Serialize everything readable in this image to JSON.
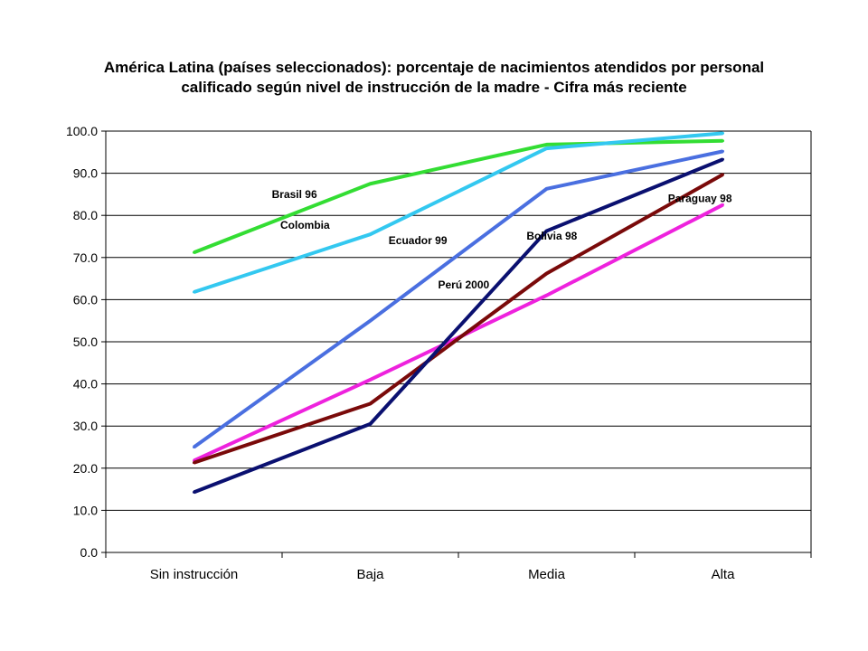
{
  "chart_data": {
    "type": "line",
    "title_lines": [
      "América Latina (países seleccionados): porcentaje de nacimientos atendidos por personal",
      "calificado según nivel de instrucción de la madre - Cifra más reciente"
    ],
    "categories": [
      "Sin instrucción",
      "Baja",
      "Media",
      "Alta"
    ],
    "ylim": [
      0,
      100
    ],
    "yticks": [
      "0.0",
      "10.0",
      "20.0",
      "30.0",
      "40.0",
      "50.0",
      "60.0",
      "70.0",
      "80.0",
      "90.0",
      "100.0"
    ],
    "grid": true,
    "legend": "none",
    "series": [
      {
        "name": "Brasil 96",
        "color": "#33dd33",
        "values": [
          71.2,
          87.5,
          96.8,
          97.7
        ]
      },
      {
        "name": "Colombia",
        "color": "#33c8f0",
        "values": [
          61.8,
          75.5,
          95.9,
          99.5
        ]
      },
      {
        "name": "Ecuador 99",
        "color": "#4a6fe0",
        "values": [
          25.0,
          55.0,
          86.3,
          95.2
        ]
      },
      {
        "name": "Perú 2000",
        "color": "#ee22dd",
        "values": [
          21.8,
          41.0,
          61.0,
          82.5
        ]
      },
      {
        "name": "Paraguay 98",
        "color": "#7a0a0a",
        "values": [
          21.3,
          35.3,
          66.2,
          89.7
        ]
      },
      {
        "name": "Bolivia 98",
        "color": "#0a1070",
        "values": [
          14.3,
          30.5,
          76.3,
          93.3
        ]
      }
    ],
    "annotations": [
      {
        "text": "Brasil 96",
        "category": "Baja",
        "offset": -0.43,
        "y": 84.1
      },
      {
        "text": "Colombia",
        "category": "Baja",
        "offset": -0.37,
        "y": 76.8
      },
      {
        "text": "Ecuador 99",
        "category": "Baja",
        "offset": 0.27,
        "y": 73.2
      },
      {
        "text": "Perú 2000",
        "category": "Baja",
        "offset": 0.53,
        "y": 62.7
      },
      {
        "text": "Bolivia 98",
        "category": "Media",
        "offset": 0.03,
        "y": 74.3
      },
      {
        "text": "Paraguay 98",
        "category": "Alta",
        "offset": -0.13,
        "y": 83.2
      }
    ]
  }
}
